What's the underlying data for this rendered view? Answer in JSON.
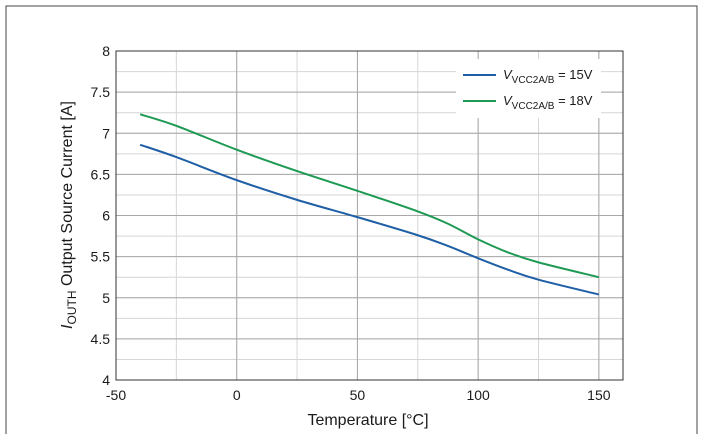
{
  "chart_data": {
    "type": "line",
    "title": "",
    "xlabel": "Temperature [°C]",
    "ylabel": {
      "symbol": "I",
      "subscript": "OUTH",
      "rest": " Output Source Current [A]"
    },
    "xlim": [
      -50,
      160
    ],
    "ylim": [
      4,
      8
    ],
    "x_ticks": [
      -50,
      0,
      50,
      100,
      150
    ],
    "x_tick_labels": [
      "-50",
      "0",
      "50",
      "100",
      "150"
    ],
    "y_ticks": [
      4,
      4.5,
      5,
      5.5,
      6,
      6.5,
      7,
      7.5,
      8
    ],
    "y_tick_labels": [
      "4",
      "4.5",
      "5",
      "5.5",
      "6",
      "6.5",
      "7",
      "7.5",
      "8"
    ],
    "grid": true,
    "legend_position": "top-right",
    "series": [
      {
        "name": {
          "symbol": "V",
          "subscript": "VCC2A/B",
          "rest": " = 15V"
        },
        "color": "#1f5fa6",
        "x": [
          -40,
          -25,
          0,
          25,
          50,
          75,
          87.5,
          100,
          112.5,
          125,
          150
        ],
        "y": [
          6.86,
          6.71,
          6.43,
          6.19,
          5.98,
          5.76,
          5.63,
          5.48,
          5.34,
          5.22,
          5.04
        ]
      },
      {
        "name": {
          "symbol": "V",
          "subscript": "VCC2A/B",
          "rest": " = 18V"
        },
        "color": "#1e9a55",
        "x": [
          -40,
          -25,
          0,
          25,
          50,
          75,
          87.5,
          100,
          112.5,
          125,
          150
        ],
        "y": [
          7.23,
          7.09,
          6.8,
          6.54,
          6.3,
          6.05,
          5.9,
          5.71,
          5.55,
          5.43,
          5.25
        ]
      }
    ]
  }
}
